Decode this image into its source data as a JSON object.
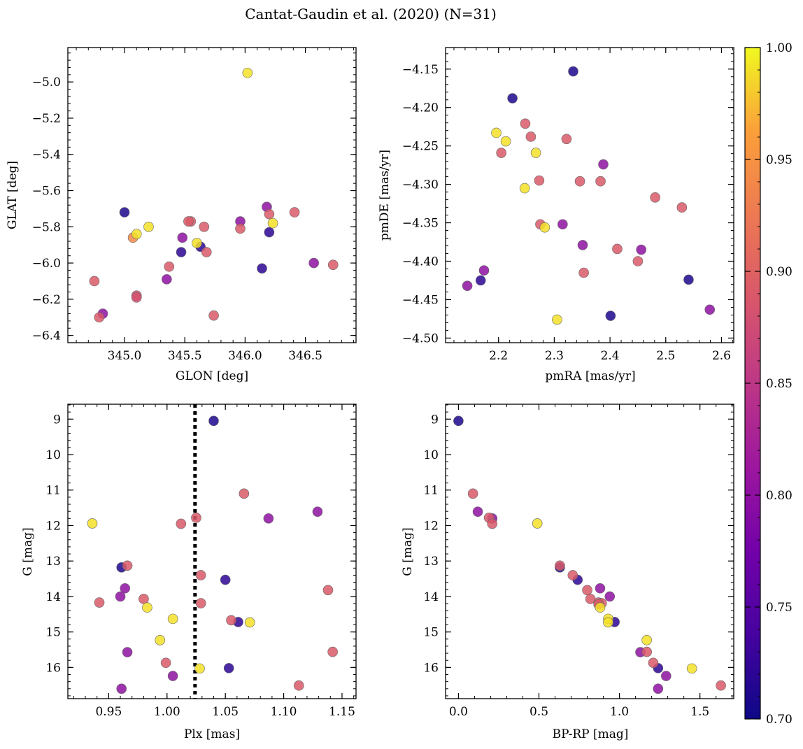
{
  "figure": {
    "title": "Cantat-Gaudin et al. (2020) (N=31)",
    "colormap": "plasma",
    "colorbar": {
      "min": 0.7,
      "max": 1.0,
      "ticks": [
        0.7,
        0.75,
        0.8,
        0.85,
        0.9,
        0.95,
        1.0
      ],
      "tick_labels": [
        "0.70",
        "0.75",
        "0.80",
        "0.85",
        "0.90",
        "0.95",
        "1.00"
      ]
    }
  },
  "chart_data": [
    {
      "id": "lon-lat",
      "type": "scatter",
      "xlabel": "GLON [deg]",
      "ylabel": "GLAT [deg]",
      "xlim": [
        344.53,
        346.92
      ],
      "ylim": [
        -6.44,
        -4.81
      ],
      "y_inverted": false,
      "xticks": [
        345.0,
        345.5,
        346.0,
        346.5
      ],
      "xtick_labels": [
        "345.0",
        "345.5",
        "346.0",
        "346.5"
      ],
      "yticks": [
        -6.4,
        -6.2,
        -6.0,
        -5.8,
        -5.6,
        -5.4,
        -5.2,
        -5.0
      ],
      "ytick_labels": [
        "−6.4",
        "−6.2",
        "−6.0",
        "−5.8",
        "−5.6",
        "−5.4",
        "−5.2",
        "−5.0"
      ],
      "points": [
        [
          346.02,
          -4.95,
          0.99
        ],
        [
          345.0,
          -5.72,
          0.71
        ],
        [
          345.07,
          -5.86,
          0.94
        ],
        [
          345.1,
          -5.84,
          0.99
        ],
        [
          345.2,
          -5.8,
          0.99
        ],
        [
          345.55,
          -5.77,
          0.89
        ],
        [
          345.66,
          -5.8,
          0.89
        ],
        [
          345.6,
          -5.89,
          0.99
        ],
        [
          345.63,
          -5.91,
          0.72
        ],
        [
          345.68,
          -5.94,
          0.89
        ],
        [
          345.47,
          -5.94,
          0.72
        ],
        [
          345.48,
          -5.86,
          0.8
        ],
        [
          345.37,
          -6.02,
          0.89
        ],
        [
          345.35,
          -6.09,
          0.8
        ],
        [
          345.1,
          -6.18,
          0.88
        ],
        [
          345.1,
          -6.19,
          0.88
        ],
        [
          344.75,
          -6.1,
          0.89
        ],
        [
          344.79,
          -6.3,
          0.89
        ],
        [
          344.82,
          -6.28,
          0.8
        ],
        [
          345.74,
          -6.29,
          0.89
        ],
        [
          345.96,
          -5.77,
          0.8
        ],
        [
          345.96,
          -5.81,
          0.89
        ],
        [
          346.18,
          -5.69,
          0.8
        ],
        [
          346.2,
          -5.73,
          0.89
        ],
        [
          346.23,
          -5.78,
          0.99
        ],
        [
          346.2,
          -5.83,
          0.72
        ],
        [
          346.14,
          -6.03,
          0.72
        ],
        [
          346.41,
          -5.72,
          0.89
        ],
        [
          346.57,
          -6.0,
          0.8
        ],
        [
          346.73,
          -6.01,
          0.89
        ],
        [
          345.53,
          -5.77,
          0.89
        ]
      ]
    },
    {
      "id": "pm",
      "type": "scatter",
      "xlabel": "pmRA [mas/yr]",
      "ylabel": "pmDE [mas/yr]",
      "xlim": [
        2.105,
        2.622
      ],
      "ylim": [
        -4.506,
        -4.122
      ],
      "y_inverted": false,
      "xticks": [
        2.2,
        2.3,
        2.4,
        2.5,
        2.6
      ],
      "xtick_labels": [
        "2.2",
        "2.3",
        "2.4",
        "2.5",
        "2.6"
      ],
      "yticks": [
        -4.5,
        -4.45,
        -4.4,
        -4.35,
        -4.3,
        -4.25,
        -4.2,
        -4.15
      ],
      "ytick_labels": [
        "−4.50",
        "−4.45",
        "−4.40",
        "−4.35",
        "−4.30",
        "−4.25",
        "−4.20",
        "−4.15"
      ],
      "points": [
        [
          2.334,
          -4.153,
          0.71
        ],
        [
          2.225,
          -4.188,
          0.71
        ],
        [
          2.196,
          -4.233,
          0.99
        ],
        [
          2.213,
          -4.244,
          0.99
        ],
        [
          2.248,
          -4.221,
          0.89
        ],
        [
          2.258,
          -4.238,
          0.89
        ],
        [
          2.322,
          -4.241,
          0.89
        ],
        [
          2.205,
          -4.259,
          0.89
        ],
        [
          2.267,
          -4.259,
          0.99
        ],
        [
          2.247,
          -4.305,
          0.99
        ],
        [
          2.273,
          -4.295,
          0.89
        ],
        [
          2.346,
          -4.296,
          0.89
        ],
        [
          2.383,
          -4.296,
          0.89
        ],
        [
          2.388,
          -4.274,
          0.8
        ],
        [
          2.481,
          -4.317,
          0.89
        ],
        [
          2.529,
          -4.33,
          0.89
        ],
        [
          2.275,
          -4.352,
          0.89
        ],
        [
          2.283,
          -4.356,
          0.99
        ],
        [
          2.315,
          -4.352,
          0.8
        ],
        [
          2.351,
          -4.379,
          0.8
        ],
        [
          2.413,
          -4.384,
          0.89
        ],
        [
          2.456,
          -4.385,
          0.8
        ],
        [
          2.353,
          -4.415,
          0.89
        ],
        [
          2.45,
          -4.4,
          0.89
        ],
        [
          2.174,
          -4.412,
          0.8
        ],
        [
          2.168,
          -4.425,
          0.72
        ],
        [
          2.144,
          -4.432,
          0.8
        ],
        [
          2.541,
          -4.424,
          0.71
        ],
        [
          2.579,
          -4.463,
          0.8
        ],
        [
          2.401,
          -4.471,
          0.71
        ],
        [
          2.305,
          -4.476,
          0.99
        ]
      ]
    },
    {
      "id": "plx-g",
      "type": "scatter",
      "xlabel": "Plx [mas]",
      "ylabel": "G [mag]",
      "xlim": [
        0.915,
        1.162
      ],
      "ylim": [
        16.88,
        8.58
      ],
      "y_inverted": true,
      "vline": 1.024,
      "xticks": [
        0.95,
        1.0,
        1.05,
        1.1,
        1.15
      ],
      "xtick_labels": [
        "0.95",
        "1.00",
        "1.05",
        "1.10",
        "1.15"
      ],
      "yticks": [
        9,
        10,
        11,
        12,
        13,
        14,
        15,
        16
      ],
      "ytick_labels": [
        "9",
        "10",
        "11",
        "12",
        "13",
        "14",
        "15",
        "16"
      ],
      "points": [
        [
          1.04,
          9.05,
          0.71
        ],
        [
          1.066,
          11.1,
          0.89
        ],
        [
          1.129,
          11.61,
          0.8
        ],
        [
          1.087,
          11.8,
          0.8
        ],
        [
          0.936,
          11.94,
          0.99
        ],
        [
          1.012,
          11.95,
          0.89
        ],
        [
          1.025,
          11.78,
          0.89
        ],
        [
          0.961,
          13.18,
          0.71
        ],
        [
          0.966,
          13.13,
          0.89
        ],
        [
          1.029,
          13.4,
          0.89
        ],
        [
          1.05,
          13.53,
          0.72
        ],
        [
          1.138,
          13.82,
          0.89
        ],
        [
          0.964,
          13.77,
          0.8
        ],
        [
          0.96,
          14.0,
          0.8
        ],
        [
          0.942,
          14.17,
          0.89
        ],
        [
          0.98,
          14.07,
          0.89
        ],
        [
          0.983,
          14.31,
          0.99
        ],
        [
          1.029,
          14.19,
          0.89
        ],
        [
          1.005,
          14.63,
          0.99
        ],
        [
          1.055,
          14.67,
          0.89
        ],
        [
          1.061,
          14.72,
          0.72
        ],
        [
          1.071,
          14.73,
          0.99
        ],
        [
          0.994,
          15.23,
          0.99
        ],
        [
          0.966,
          15.57,
          0.8
        ],
        [
          1.142,
          15.56,
          0.89
        ],
        [
          0.999,
          15.87,
          0.89
        ],
        [
          1.028,
          16.03,
          0.99
        ],
        [
          1.053,
          16.02,
          0.72
        ],
        [
          1.005,
          16.24,
          0.8
        ],
        [
          1.113,
          16.51,
          0.89
        ],
        [
          0.961,
          16.6,
          0.8
        ]
      ]
    },
    {
      "id": "color-g",
      "type": "scatter",
      "xlabel": "BP-RP [mag]",
      "ylabel": "G [mag]",
      "xlim": [
        -0.08,
        1.71
      ],
      "ylim": [
        16.88,
        8.58
      ],
      "y_inverted": true,
      "xticks": [
        0.0,
        0.5,
        1.0,
        1.5
      ],
      "xtick_labels": [
        "0.0",
        "0.5",
        "1.0",
        "1.5"
      ],
      "yticks": [
        9,
        10,
        11,
        12,
        13,
        14,
        15,
        16
      ],
      "ytick_labels": [
        "9",
        "10",
        "11",
        "12",
        "13",
        "14",
        "15",
        "16"
      ],
      "points": [
        [
          0.0,
          9.05,
          0.71
        ],
        [
          0.09,
          11.1,
          0.89
        ],
        [
          0.12,
          11.61,
          0.8
        ],
        [
          0.21,
          11.8,
          0.8
        ],
        [
          0.19,
          11.78,
          0.89
        ],
        [
          0.21,
          11.95,
          0.89
        ],
        [
          0.49,
          11.94,
          0.99
        ],
        [
          0.63,
          13.18,
          0.71
        ],
        [
          0.63,
          13.13,
          0.89
        ],
        [
          0.71,
          13.4,
          0.89
        ],
        [
          0.74,
          13.53,
          0.72
        ],
        [
          0.8,
          13.82,
          0.89
        ],
        [
          0.88,
          13.77,
          0.8
        ],
        [
          0.82,
          14.07,
          0.89
        ],
        [
          0.87,
          14.17,
          0.89
        ],
        [
          0.94,
          14.0,
          0.8
        ],
        [
          0.88,
          14.31,
          0.99
        ],
        [
          0.93,
          14.63,
          0.99
        ],
        [
          0.97,
          14.72,
          0.72
        ],
        [
          0.93,
          14.73,
          0.99
        ],
        [
          0.89,
          14.19,
          0.89
        ],
        [
          1.17,
          15.23,
          0.99
        ],
        [
          1.13,
          15.57,
          0.8
        ],
        [
          1.17,
          15.56,
          0.89
        ],
        [
          1.21,
          15.87,
          0.89
        ],
        [
          1.24,
          16.02,
          0.72
        ],
        [
          1.45,
          16.03,
          0.99
        ],
        [
          1.29,
          16.24,
          0.8
        ],
        [
          1.24,
          16.6,
          0.8
        ],
        [
          1.63,
          16.51,
          0.89
        ],
        [
          0.87,
          14.22,
          0.89
        ]
      ]
    }
  ]
}
